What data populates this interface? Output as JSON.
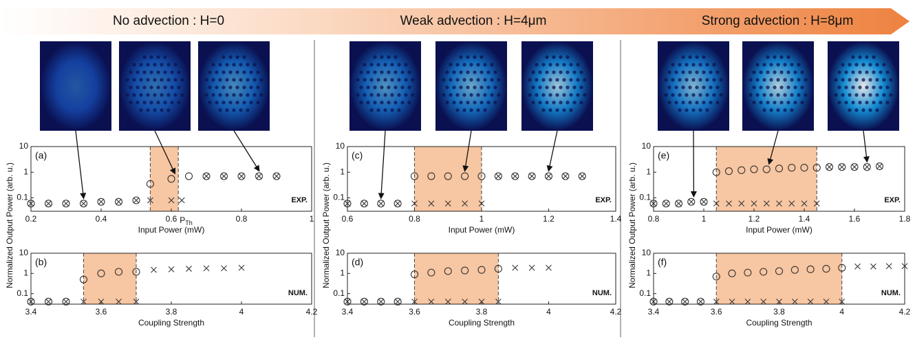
{
  "header": {
    "columns": [
      "No advection : H=0",
      "Weak advection : H=4μm",
      "Strong advection : H=8μm"
    ]
  },
  "y_label": "Normalized Output Power (arb. u.)",
  "chart_data": [
    {
      "type": "scatter",
      "panel": "(a)",
      "tag": "EXP.",
      "xlabel": "Input Power (mW)",
      "xlim": [
        0.2,
        1
      ],
      "xticks": [
        0.2,
        0.4,
        0.6,
        0.8,
        1
      ],
      "ylim": [
        0.03,
        10
      ],
      "yticks": [
        0.1,
        1,
        10
      ],
      "log_y": true,
      "shade": [
        0.54,
        0.62
      ],
      "arrows": [
        0.35,
        0.61,
        0.85
      ],
      "annotation": {
        "text": "P",
        "subscript": "Th",
        "x": 0.62
      },
      "series": [
        {
          "marker": "circle",
          "color": "#333333",
          "x": [
            0.2,
            0.25,
            0.3,
            0.35,
            0.4,
            0.45,
            0.5,
            0.54,
            0.6,
            0.65,
            0.7,
            0.75,
            0.8,
            0.85,
            0.9
          ],
          "values": [
            0.06,
            0.06,
            0.06,
            0.06,
            0.07,
            0.07,
            0.08,
            0.35,
            0.55,
            0.7,
            0.7,
            0.7,
            0.7,
            0.7,
            0.7
          ]
        },
        {
          "marker": "cross",
          "color": "#333333",
          "x": [
            0.2,
            0.25,
            0.3,
            0.35,
            0.4,
            0.45,
            0.5,
            0.54,
            0.6,
            0.63,
            0.7,
            0.75,
            0.8,
            0.85,
            0.9
          ],
          "values": [
            0.06,
            0.06,
            0.06,
            0.06,
            0.07,
            0.07,
            0.08,
            0.08,
            0.08,
            0.08,
            0.7,
            0.7,
            0.7,
            0.7,
            0.7
          ]
        }
      ]
    },
    {
      "type": "scatter",
      "panel": "(b)",
      "tag": "NUM.",
      "xlabel": "Coupling Strength",
      "xlim": [
        3.4,
        4.2
      ],
      "xticks": [
        3.4,
        3.6,
        3.8,
        4,
        4.2
      ],
      "ylim": [
        0.03,
        10
      ],
      "yticks": [
        0.1,
        1,
        10
      ],
      "log_y": true,
      "shade": [
        3.55,
        3.7
      ],
      "series": [
        {
          "marker": "circle",
          "color": "#333333",
          "x": [
            3.4,
            3.45,
            3.5,
            3.55,
            3.6,
            3.65,
            3.7
          ],
          "values": [
            0.04,
            0.04,
            0.04,
            0.5,
            1,
            1.2,
            1.2
          ]
        },
        {
          "marker": "cross",
          "color": "#333333",
          "x": [
            3.4,
            3.45,
            3.5,
            3.55,
            3.6,
            3.65,
            3.7,
            3.75,
            3.8,
            3.85,
            3.9,
            3.95,
            4
          ],
          "values": [
            0.04,
            0.04,
            0.04,
            0.04,
            0.04,
            0.04,
            0.04,
            1.5,
            1.6,
            1.7,
            1.8,
            1.8,
            1.9
          ]
        }
      ]
    },
    {
      "type": "scatter",
      "panel": "(c)",
      "tag": "EXP.",
      "xlabel": "Input Power (mW)",
      "xlim": [
        0.6,
        1.4
      ],
      "xticks": [
        0.6,
        0.8,
        1,
        1.2,
        1.4
      ],
      "ylim": [
        0.03,
        10
      ],
      "yticks": [
        0.1,
        1,
        10
      ],
      "log_y": true,
      "shade": [
        0.8,
        1
      ],
      "arrows": [
        0.7,
        0.95,
        1.2
      ],
      "series": [
        {
          "marker": "circle",
          "color": "#333333",
          "x": [
            0.6,
            0.65,
            0.7,
            0.75,
            0.8,
            0.85,
            0.9,
            0.95,
            1,
            1.05,
            1.1,
            1.15,
            1.2,
            1.25,
            1.3
          ],
          "values": [
            0.06,
            0.06,
            0.06,
            0.06,
            0.7,
            0.7,
            0.7,
            0.7,
            0.7,
            0.7,
            0.7,
            0.7,
            0.7,
            0.7,
            0.7
          ]
        },
        {
          "marker": "cross",
          "color": "#333333",
          "x": [
            0.6,
            0.65,
            0.7,
            0.75,
            0.8,
            0.85,
            0.9,
            0.95,
            1,
            1.05,
            1.1,
            1.15,
            1.2,
            1.25,
            1.3
          ],
          "values": [
            0.06,
            0.06,
            0.06,
            0.06,
            0.06,
            0.06,
            0.06,
            0.06,
            0.06,
            0.7,
            0.7,
            0.7,
            0.7,
            0.7,
            0.7
          ]
        }
      ]
    },
    {
      "type": "scatter",
      "panel": "(d)",
      "tag": "NUM.",
      "xlabel": "Coupling Strength",
      "xlim": [
        3.4,
        4.2
      ],
      "xticks": [
        3.4,
        3.6,
        3.8,
        4,
        4.2
      ],
      "ylim": [
        0.03,
        10
      ],
      "yticks": [
        0.1,
        1,
        10
      ],
      "log_y": true,
      "shade": [
        3.6,
        3.85
      ],
      "series": [
        {
          "marker": "circle",
          "color": "#333333",
          "x": [
            3.4,
            3.45,
            3.5,
            3.55,
            3.6,
            3.65,
            3.7,
            3.75,
            3.8,
            3.85
          ],
          "values": [
            0.04,
            0.04,
            0.04,
            0.04,
            0.9,
            1.1,
            1.3,
            1.4,
            1.5,
            1.7
          ]
        },
        {
          "marker": "cross",
          "color": "#333333",
          "x": [
            3.4,
            3.45,
            3.5,
            3.55,
            3.6,
            3.65,
            3.7,
            3.75,
            3.8,
            3.85,
            3.9,
            3.95,
            4
          ],
          "values": [
            0.04,
            0.04,
            0.04,
            0.04,
            0.04,
            0.04,
            0.04,
            0.04,
            0.04,
            0.04,
            1.9,
            1.9,
            1.9
          ]
        }
      ]
    },
    {
      "type": "scatter",
      "panel": "(e)",
      "tag": "EXP.",
      "xlabel": "Input Power (mW)",
      "xlim": [
        0.8,
        1.8
      ],
      "xticks": [
        0.8,
        1,
        1.2,
        1.4,
        1.6,
        1.8
      ],
      "ylim": [
        0.03,
        10
      ],
      "yticks": [
        0.1,
        1,
        10
      ],
      "log_y": true,
      "shade": [
        1.05,
        1.45
      ],
      "arrows": [
        0.96,
        1.26,
        1.65
      ],
      "series": [
        {
          "marker": "circle",
          "color": "#333333",
          "x": [
            0.8,
            0.85,
            0.9,
            0.95,
            1,
            1.05,
            1.1,
            1.15,
            1.2,
            1.25,
            1.3,
            1.35,
            1.4,
            1.45,
            1.5,
            1.55,
            1.6,
            1.65,
            1.7
          ],
          "values": [
            0.06,
            0.06,
            0.06,
            0.07,
            0.07,
            1,
            1.1,
            1.2,
            1.3,
            1.3,
            1.4,
            1.5,
            1.5,
            1.5,
            1.6,
            1.6,
            1.6,
            1.6,
            1.7
          ]
        },
        {
          "marker": "cross",
          "color": "#333333",
          "x": [
            0.8,
            0.85,
            0.9,
            0.95,
            1,
            1.05,
            1.1,
            1.15,
            1.2,
            1.25,
            1.3,
            1.35,
            1.4,
            1.45,
            1.5,
            1.55,
            1.6,
            1.65,
            1.7
          ],
          "values": [
            0.06,
            0.06,
            0.06,
            0.07,
            0.07,
            0.06,
            0.06,
            0.06,
            0.06,
            0.06,
            0.06,
            0.06,
            0.06,
            0.06,
            1.6,
            1.6,
            1.6,
            1.6,
            1.7
          ]
        }
      ]
    },
    {
      "type": "scatter",
      "panel": "(f)",
      "tag": "NUM.",
      "xlabel": "Coupling Strength",
      "xlim": [
        3.4,
        4.2
      ],
      "xticks": [
        3.4,
        3.6,
        3.8,
        4,
        4.2
      ],
      "ylim": [
        0.03,
        10
      ],
      "yticks": [
        0.1,
        1,
        10
      ],
      "log_y": true,
      "shade": [
        3.6,
        4
      ],
      "series": [
        {
          "marker": "circle",
          "color": "#333333",
          "x": [
            3.4,
            3.45,
            3.5,
            3.55,
            3.6,
            3.65,
            3.7,
            3.75,
            3.8,
            3.85,
            3.9,
            3.95,
            4
          ],
          "values": [
            0.04,
            0.04,
            0.04,
            0.04,
            0.7,
            1,
            1.1,
            1.2,
            1.3,
            1.5,
            1.6,
            1.7,
            1.9
          ]
        },
        {
          "marker": "cross",
          "color": "#333333",
          "x": [
            3.4,
            3.45,
            3.5,
            3.55,
            3.6,
            3.65,
            3.7,
            3.75,
            3.8,
            3.85,
            3.9,
            3.95,
            4,
            4.05,
            4.1,
            4.15,
            4.2
          ],
          "values": [
            0.04,
            0.04,
            0.04,
            0.04,
            0.04,
            0.04,
            0.04,
            0.04,
            0.04,
            0.04,
            0.04,
            0.04,
            0.04,
            2.2,
            2.2,
            2.3,
            2.3
          ]
        }
      ]
    }
  ]
}
